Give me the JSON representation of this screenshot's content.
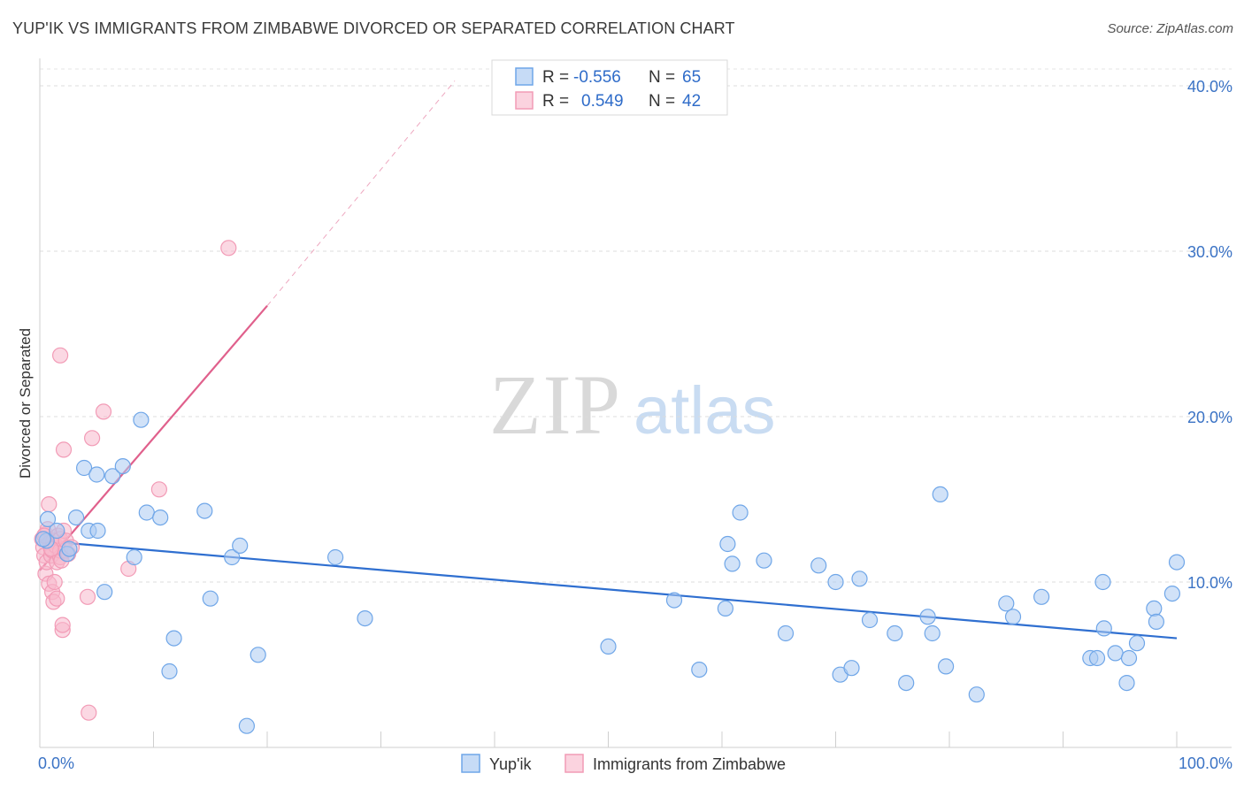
{
  "title": "YUP'IK VS IMMIGRANTS FROM ZIMBABWE DIVORCED OR SEPARATED CORRELATION CHART",
  "source": "Source: ZipAtlas.com",
  "watermark": {
    "zip": "ZIP",
    "atlas": "atlas"
  },
  "colors": {
    "blue": "#6fa6e8",
    "blue_line": "#2f6fd0",
    "pink": "#f29bb6",
    "pink_line": "#e0608c",
    "tick": "#3b73c5"
  },
  "stats_legend": [
    {
      "r_label": "R =",
      "r_value": "-0.556",
      "n_label": "N =",
      "n_value": "65"
    },
    {
      "r_label": "R =",
      "r_value": "0.549",
      "n_label": "N =",
      "n_value": "42"
    }
  ],
  "chart_data": {
    "type": "scatter",
    "title": "YUP'IK VS IMMIGRANTS FROM ZIMBABWE DIVORCED OR SEPARATED CORRELATION CHART",
    "xlabel": "",
    "ylabel": "Divorced or Separated",
    "xlim": [
      0,
      100
    ],
    "ylim": [
      0,
      40
    ],
    "x_tick_labels": [
      "0.0%",
      "100.0%"
    ],
    "y_ticks": [
      10,
      20,
      30,
      40
    ],
    "y_tick_labels": [
      "10.0%",
      "20.0%",
      "30.0%",
      "40.0%"
    ],
    "grid": "horizontal dashed",
    "legend_position": "bottom-center",
    "series": [
      {
        "name": "Yup'ik",
        "color": "#6fa6e8",
        "points": [
          [
            0.6,
            12.5
          ],
          [
            0.7,
            13.8
          ],
          [
            1.5,
            13.1
          ],
          [
            2.4,
            11.7
          ],
          [
            2.6,
            12.0
          ],
          [
            3.2,
            13.9
          ],
          [
            3.9,
            16.9
          ],
          [
            4.3,
            13.1
          ],
          [
            5.0,
            16.5
          ],
          [
            5.1,
            13.1
          ],
          [
            5.7,
            9.4
          ],
          [
            6.4,
            16.4
          ],
          [
            7.3,
            17.0
          ],
          [
            8.3,
            11.5
          ],
          [
            8.9,
            19.8
          ],
          [
            9.4,
            14.2
          ],
          [
            10.6,
            13.9
          ],
          [
            11.4,
            4.6
          ],
          [
            11.8,
            6.6
          ],
          [
            14.5,
            14.3
          ],
          [
            15.0,
            9.0
          ],
          [
            16.9,
            11.5
          ],
          [
            17.6,
            12.2
          ],
          [
            18.2,
            1.3
          ],
          [
            19.2,
            5.6
          ],
          [
            26.0,
            11.5
          ],
          [
            28.6,
            7.8
          ],
          [
            50.0,
            6.1
          ],
          [
            55.8,
            8.9
          ],
          [
            58.0,
            4.7
          ],
          [
            60.3,
            8.4
          ],
          [
            60.5,
            12.3
          ],
          [
            60.9,
            11.1
          ],
          [
            61.6,
            14.2
          ],
          [
            63.7,
            11.3
          ],
          [
            65.6,
            6.9
          ],
          [
            68.5,
            11.0
          ],
          [
            70.0,
            10.0
          ],
          [
            70.4,
            4.4
          ],
          [
            71.4,
            4.8
          ],
          [
            72.1,
            10.2
          ],
          [
            73.0,
            7.7
          ],
          [
            75.2,
            6.9
          ],
          [
            76.2,
            3.9
          ],
          [
            78.1,
            7.9
          ],
          [
            78.5,
            6.9
          ],
          [
            79.2,
            15.3
          ],
          [
            79.7,
            4.9
          ],
          [
            82.4,
            3.2
          ],
          [
            85.0,
            8.7
          ],
          [
            85.6,
            7.9
          ],
          [
            88.1,
            9.1
          ],
          [
            92.4,
            5.4
          ],
          [
            93.0,
            5.4
          ],
          [
            93.5,
            10.0
          ],
          [
            93.6,
            7.2
          ],
          [
            94.6,
            5.7
          ],
          [
            95.6,
            3.9
          ],
          [
            95.8,
            5.4
          ],
          [
            96.5,
            6.3
          ],
          [
            98.0,
            8.4
          ],
          [
            98.2,
            7.6
          ],
          [
            99.6,
            9.3
          ],
          [
            100.0,
            11.2
          ],
          [
            0.3,
            12.6
          ]
        ]
      },
      {
        "name": "Immigrants from Zimbabwe",
        "color": "#f29bb6",
        "points": [
          [
            0.2,
            12.6
          ],
          [
            0.3,
            12.1
          ],
          [
            0.4,
            11.6
          ],
          [
            0.5,
            10.5
          ],
          [
            0.5,
            12.9
          ],
          [
            0.6,
            11.2
          ],
          [
            0.7,
            13.2
          ],
          [
            0.8,
            14.7
          ],
          [
            0.8,
            9.9
          ],
          [
            0.9,
            12.4
          ],
          [
            1.0,
            11.6
          ],
          [
            1.1,
            11.9
          ],
          [
            1.1,
            9.4
          ],
          [
            1.2,
            12.5
          ],
          [
            1.2,
            8.8
          ],
          [
            1.3,
            10.0
          ],
          [
            1.4,
            12.2
          ],
          [
            1.5,
            11.2
          ],
          [
            1.5,
            9.0
          ],
          [
            1.6,
            12.8
          ],
          [
            1.8,
            11.5
          ],
          [
            1.8,
            11.9
          ],
          [
            1.8,
            12.6
          ],
          [
            1.8,
            23.7
          ],
          [
            1.9,
            11.3
          ],
          [
            2.0,
            7.1
          ],
          [
            2.0,
            7.4
          ],
          [
            2.1,
            13.1
          ],
          [
            2.1,
            18.0
          ],
          [
            2.2,
            11.9
          ],
          [
            2.3,
            12.5
          ],
          [
            2.5,
            11.7
          ],
          [
            2.8,
            12.1
          ],
          [
            4.2,
            9.1
          ],
          [
            4.3,
            2.1
          ],
          [
            4.6,
            18.7
          ],
          [
            5.6,
            20.3
          ],
          [
            7.8,
            10.8
          ],
          [
            10.5,
            15.6
          ],
          [
            16.6,
            30.2
          ],
          [
            1.0,
            12.0
          ],
          [
            0.4,
            12.8
          ]
        ]
      }
    ],
    "trendlines": [
      {
        "series": "Yup'ik",
        "x0": 0,
        "y0": 12.5,
        "x1": 100,
        "y1": 6.6,
        "style": "solid"
      },
      {
        "series": "Immigrants from Zimbabwe",
        "x0": 0,
        "y0": 10.7,
        "x1": 20,
        "y1": 26.7,
        "style": "solid"
      },
      {
        "series": "Immigrants from Zimbabwe",
        "x0": 20,
        "y0": 26.7,
        "x1": 36.5,
        "y1": 40.3,
        "style": "dashed"
      }
    ]
  },
  "bottom_legend": [
    {
      "label": "Yup'ik"
    },
    {
      "label": "Immigrants from Zimbabwe"
    }
  ]
}
